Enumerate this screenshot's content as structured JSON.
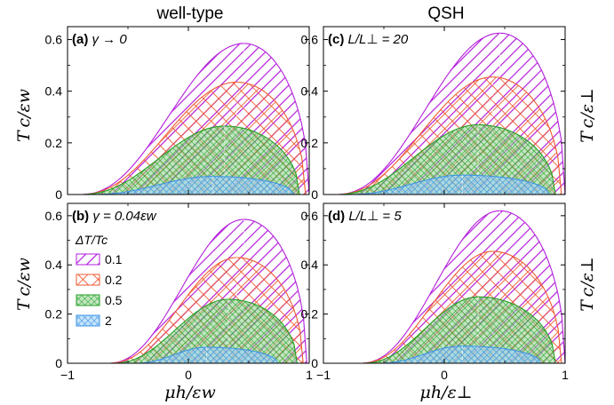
{
  "figure": {
    "col_titles": [
      "well-type",
      "QSH"
    ],
    "ylabel_left": "T c/εw",
    "ylabel_right": "T c/ε⊥",
    "xlabel_left": "μh/εw",
    "xlabel_right": "μh/ε⊥"
  },
  "legend": {
    "title": "ΔT/Tc",
    "entries": [
      "0.1",
      "0.2",
      "0.5",
      "2"
    ]
  },
  "colors": {
    "0.1": "#b41edc",
    "0.2": "#ef5a32",
    "0.5": "#22a022",
    "2": "#3c96e6"
  },
  "chart_data": [
    {
      "type": "area",
      "panel_label": "(a)",
      "panel_text": "γ → 0",
      "x_ticks": [
        "−1",
        "0",
        "1"
      ],
      "y_ticks": [
        "0",
        "0.2",
        "0.4",
        "0.6"
      ],
      "xlim": [
        -1,
        1
      ],
      "ylim": [
        0,
        0.65
      ],
      "series": [
        {
          "name": "0.1",
          "x_start": -0.9,
          "x_peak": 0.46,
          "peak": 0.585,
          "x_end": 1.0
        },
        {
          "name": "0.2",
          "x_start": -0.9,
          "x_peak": 0.4,
          "peak": 0.435,
          "x_end": 0.97
        },
        {
          "name": "0.5",
          "x_start": -0.9,
          "x_peak": 0.3,
          "peak": 0.265,
          "x_end": 0.92
        },
        {
          "name": "2",
          "x_start": -0.8,
          "x_peak": 0.2,
          "peak": 0.07,
          "x_end": 0.87
        }
      ]
    },
    {
      "type": "area",
      "panel_label": "(c)",
      "panel_text": "L/L⊥ = 20",
      "x_ticks": [
        "−1",
        "0",
        "1"
      ],
      "y_ticks": [
        "0",
        "0.2",
        "0.4",
        "0.6"
      ],
      "xlim": [
        -1,
        1
      ],
      "ylim": [
        0,
        0.65
      ],
      "series": [
        {
          "name": "0.1",
          "x_start": -0.9,
          "x_peak": 0.46,
          "peak": 0.625,
          "x_end": 1.0
        },
        {
          "name": "0.2",
          "x_start": -0.9,
          "x_peak": 0.4,
          "peak": 0.455,
          "x_end": 0.97
        },
        {
          "name": "0.5",
          "x_start": -0.9,
          "x_peak": 0.28,
          "peak": 0.27,
          "x_end": 0.92
        },
        {
          "name": "2",
          "x_start": -0.8,
          "x_peak": 0.15,
          "peak": 0.075,
          "x_end": 0.87
        }
      ]
    },
    {
      "type": "area",
      "panel_label": "(b)",
      "panel_text": "γ = 0.04εw",
      "x_ticks": [
        "−1",
        "0",
        "1"
      ],
      "y_ticks": [
        "0",
        "0.2",
        "0.4",
        "0.6"
      ],
      "xlim": [
        -1,
        1
      ],
      "ylim": [
        0,
        0.65
      ],
      "series": [
        {
          "name": "0.1",
          "x_start": -0.67,
          "x_peak": 0.46,
          "peak": 0.585,
          "x_end": 0.98
        },
        {
          "name": "0.2",
          "x_start": -0.66,
          "x_peak": 0.4,
          "peak": 0.43,
          "x_end": 0.95
        },
        {
          "name": "0.5",
          "x_start": -0.63,
          "x_peak": 0.33,
          "peak": 0.26,
          "x_end": 0.9
        },
        {
          "name": "2",
          "x_start": -0.45,
          "x_peak": 0.15,
          "peak": 0.065,
          "x_end": 0.74
        }
      ]
    },
    {
      "type": "area",
      "panel_label": "(d)",
      "panel_text": "L/L⊥ = 5",
      "x_ticks": [
        "−1",
        "0",
        "1"
      ],
      "y_ticks": [
        "0",
        "0.2",
        "0.4",
        "0.6"
      ],
      "xlim": [
        -1,
        1
      ],
      "ylim": [
        0,
        0.65
      ],
      "series": [
        {
          "name": "0.1",
          "x_start": -0.7,
          "x_peak": 0.46,
          "peak": 0.62,
          "x_end": 1.0
        },
        {
          "name": "0.2",
          "x_start": -0.7,
          "x_peak": 0.4,
          "peak": 0.455,
          "x_end": 0.97
        },
        {
          "name": "0.5",
          "x_start": -0.68,
          "x_peak": 0.28,
          "peak": 0.27,
          "x_end": 0.92
        },
        {
          "name": "2",
          "x_start": -0.55,
          "x_peak": 0.15,
          "peak": 0.07,
          "x_end": 0.8
        }
      ]
    }
  ]
}
